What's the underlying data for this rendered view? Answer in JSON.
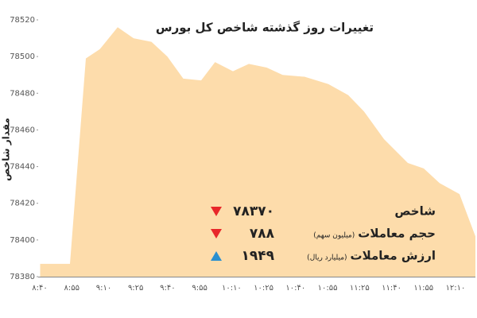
{
  "chart_data": {
    "type": "area",
    "title": "تغییرات روز گذشته شاخص کل بورس",
    "ylabel": "مقدار شاخص",
    "color": "#fddcab",
    "x": [
      "08:40",
      "08:55",
      "09:03",
      "09:10",
      "09:19",
      "09:27",
      "09:36",
      "09:44",
      "09:52",
      "10:01",
      "10:08",
      "10:17",
      "10:25",
      "10:34",
      "10:42",
      "10:53",
      "11:05",
      "11:15",
      "11:23",
      "11:33",
      "11:45",
      "11:53",
      "12:01",
      "12:11",
      "12:19"
    ],
    "values": [
      78387,
      78387,
      78499,
      78504,
      78516,
      78510,
      78508,
      78500,
      78488,
      78487,
      78497,
      78492,
      78496,
      78494,
      78490,
      78489,
      78485,
      78479,
      78470,
      78455,
      78442,
      78439,
      78431,
      78425,
      78402
    ],
    "xlim": [
      "08:39",
      "12:19"
    ],
    "xticks": [
      "۸:۴۰",
      "۸:۵۵",
      "۹:۱۰",
      "۹:۲۵",
      "۹:۴۰",
      "۹:۵۵",
      "۱۰:۱۰",
      "۱۰:۲۵",
      "۱۰:۴۰",
      "۱۰:۵۵",
      "۱۱:۲۵",
      "۱۱:۴۰",
      "۱۱:۵۵",
      "۱۲:۱۰"
    ],
    "ylim": [
      78380,
      78520
    ],
    "yticks": [
      78380,
      78400,
      78420,
      78440,
      78460,
      78480,
      78500,
      78520
    ],
    "summary": [
      {
        "name": "شاخص",
        "value": 78370,
        "value_label": "۷۸۳۷۰",
        "direction": "down",
        "color": "#e8272a"
      },
      {
        "name": "حجم معاملات",
        "unit": "(میلیون سهم)",
        "value": 788,
        "value_label": "۷۸۸",
        "direction": "down",
        "color": "#e8272a"
      },
      {
        "name": "ارزش معاملات",
        "unit": "(میلیارد ریال)",
        "value": 1949,
        "value_label": "۱۹۴۹",
        "direction": "up",
        "color": "#2a8fd0"
      }
    ]
  }
}
